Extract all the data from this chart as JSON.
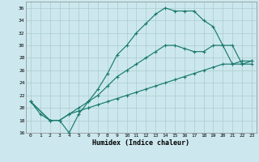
{
  "xlabel": "Humidex (Indice chaleur)",
  "bg_color": "#cce8ee",
  "grid_color": "#aacccc",
  "line_color": "#1a7a6e",
  "xlim": [
    -0.5,
    23.5
  ],
  "ylim": [
    16,
    37
  ],
  "xticks": [
    0,
    1,
    2,
    3,
    4,
    5,
    6,
    7,
    8,
    9,
    10,
    11,
    12,
    13,
    14,
    15,
    16,
    17,
    18,
    19,
    20,
    21,
    22,
    23
  ],
  "yticks": [
    16,
    18,
    20,
    22,
    24,
    26,
    28,
    30,
    32,
    34,
    36
  ],
  "line1_x": [
    0,
    1,
    2,
    3,
    4,
    5,
    6,
    7,
    8,
    9,
    10,
    11,
    12,
    13,
    14,
    15,
    16,
    17,
    18,
    19,
    21,
    22,
    23
  ],
  "line1_y": [
    21,
    19,
    18,
    18,
    16,
    19,
    21,
    23,
    25.5,
    28.5,
    30,
    32,
    33.5,
    35,
    36,
    35.5,
    35.5,
    35.5,
    34,
    33,
    27,
    27.5,
    27.5
  ],
  "line2_x": [
    0,
    2,
    3,
    4,
    5,
    6,
    7,
    8,
    9,
    10,
    11,
    12,
    13,
    14,
    15,
    16,
    17,
    18,
    19,
    20,
    21,
    22,
    23
  ],
  "line2_y": [
    21,
    18,
    18,
    19,
    20,
    21,
    22,
    23.5,
    25,
    26,
    27,
    28,
    29,
    30,
    30,
    29.5,
    29,
    29,
    30,
    30,
    30,
    27,
    27
  ],
  "line3_x": [
    0,
    2,
    3,
    4,
    5,
    6,
    7,
    8,
    9,
    10,
    11,
    12,
    13,
    14,
    15,
    16,
    17,
    18,
    19,
    20,
    21,
    22,
    23
  ],
  "line3_y": [
    21,
    18,
    18,
    19,
    19.5,
    20,
    20.5,
    21,
    21.5,
    22,
    22.5,
    23,
    23.5,
    24,
    24.5,
    25,
    25.5,
    26,
    26.5,
    27,
    27,
    27,
    27.5
  ]
}
